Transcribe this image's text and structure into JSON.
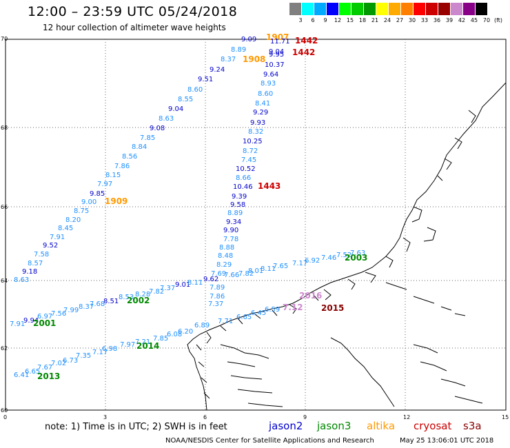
{
  "header": {
    "title": "12:00 – 23:59 UTC 05/24/2018",
    "subtitle": "12 hour collection of altimeter wave heights"
  },
  "legend": {
    "unit": "(ft)",
    "colors": [
      "#808080",
      "#00ffff",
      "#00aaff",
      "#0000ff",
      "#00ff00",
      "#00cc00",
      "#009900",
      "#ffff00",
      "#ffaa00",
      "#ff7f00",
      "#ff0000",
      "#cc0000",
      "#990000",
      "#cc88cc",
      "#880088",
      "#000000"
    ],
    "labels": [
      "3",
      "6",
      "9",
      "12",
      "15",
      "18",
      "21",
      "24",
      "27",
      "30",
      "33",
      "36",
      "39",
      "42",
      "45",
      "70"
    ]
  },
  "axes": {
    "y_ticks": [
      "70",
      "68",
      "66",
      "64",
      "62",
      "60"
    ],
    "x_ticks": [
      "0",
      "3",
      "6",
      "9",
      "12",
      "15"
    ]
  },
  "footer": {
    "note": "note: 1) Time is in UTC; 2) SWH is in feet",
    "satellites": [
      {
        "name": "jason2",
        "color": "#0000cc"
      },
      {
        "name": "jason3",
        "color": "#008800"
      },
      {
        "name": "altika",
        "color": "#ff9900"
      },
      {
        "name": "cryosat",
        "color": "#cc0000"
      },
      {
        "name": "s3a",
        "color": "#880000"
      }
    ],
    "credit": "NOAA/NESDIS Center for Satellite Applications and Research",
    "timestamp": "May 25 13:06:01 UTC 2018"
  },
  "map": {
    "markers": [
      {
        "t": "9.09",
        "c": "#0000cc"
      },
      {
        "t": "1907",
        "c": "#ff9900"
      },
      {
        "t": "11.71",
        "c": "#0000cc"
      },
      {
        "t": "1442",
        "c": "#cc0000"
      },
      {
        "t": "8.89",
        "c": "#1e90ff"
      },
      {
        "t": "9.04",
        "c": "#0000cc"
      },
      {
        "t": "9.95",
        "c": "#0000cc"
      },
      {
        "t": "1442",
        "c": "#cc0000"
      },
      {
        "t": "8.37",
        "c": "#1e90ff"
      },
      {
        "t": "1908",
        "c": "#ff9900"
      },
      {
        "t": "10.37",
        "c": "#0000cc"
      },
      {
        "t": "9.24",
        "c": "#0000cc"
      },
      {
        "t": "9.64",
        "c": "#0000cc"
      },
      {
        "t": "9.51",
        "c": "#0000cc"
      },
      {
        "t": "8.93",
        "c": "#1e90ff"
      },
      {
        "t": "8.60",
        "c": "#1e90ff"
      },
      {
        "t": "8.60",
        "c": "#1e90ff"
      },
      {
        "t": "8.55",
        "c": "#1e90ff"
      },
      {
        "t": "8.41",
        "c": "#1e90ff"
      },
      {
        "t": "9.04",
        "c": "#0000cc"
      },
      {
        "t": "9.29",
        "c": "#0000cc"
      },
      {
        "t": "8.63",
        "c": "#1e90ff"
      },
      {
        "t": "9.93",
        "c": "#0000cc"
      },
      {
        "t": "9.08",
        "c": "#0000cc"
      },
      {
        "t": "8.32",
        "c": "#1e90ff"
      },
      {
        "t": "7.85",
        "c": "#1e90ff"
      },
      {
        "t": "10.25",
        "c": "#0000cc"
      },
      {
        "t": "8.84",
        "c": "#1e90ff"
      },
      {
        "t": "8.72",
        "c": "#1e90ff"
      },
      {
        "t": "8.56",
        "c": "#1e90ff"
      },
      {
        "t": "7.45",
        "c": "#1e90ff"
      },
      {
        "t": "7.86",
        "c": "#1e90ff"
      },
      {
        "t": "10.52",
        "c": "#0000cc"
      },
      {
        "t": "8.15",
        "c": "#1e90ff"
      },
      {
        "t": "8.66",
        "c": "#1e90ff"
      },
      {
        "t": "7.97",
        "c": "#1e90ff"
      },
      {
        "t": "10.46",
        "c": "#0000cc"
      },
      {
        "t": "1443",
        "c": "#cc0000"
      },
      {
        "t": "9.85",
        "c": "#0000cc"
      },
      {
        "t": "9.39",
        "c": "#0000cc"
      },
      {
        "t": "9.00",
        "c": "#1e90ff"
      },
      {
        "t": "1909",
        "c": "#ff9900"
      },
      {
        "t": "9.58",
        "c": "#0000cc"
      },
      {
        "t": "8.75",
        "c": "#1e90ff"
      },
      {
        "t": "8.89",
        "c": "#1e90ff"
      },
      {
        "t": "8.20",
        "c": "#1e90ff"
      },
      {
        "t": "9.34",
        "c": "#0000cc"
      },
      {
        "t": "8.45",
        "c": "#1e90ff"
      },
      {
        "t": "9.90",
        "c": "#0000cc"
      },
      {
        "t": "7.91",
        "c": "#1e90ff"
      },
      {
        "t": "7.78",
        "c": "#1e90ff"
      },
      {
        "t": "9.52",
        "c": "#0000cc"
      },
      {
        "t": "8.88",
        "c": "#1e90ff"
      },
      {
        "t": "7.58",
        "c": "#1e90ff"
      },
      {
        "t": "8.48",
        "c": "#1e90ff"
      },
      {
        "t": "8.57",
        "c": "#1e90ff"
      },
      {
        "t": "8.29",
        "c": "#1e90ff"
      },
      {
        "t": "9.18",
        "c": "#0000cc"
      },
      {
        "t": "8.63",
        "c": "#1e90ff"
      },
      {
        "t": "7.69",
        "c": "#1e90ff"
      },
      {
        "t": "7.89",
        "c": "#1e90ff"
      },
      {
        "t": "7.86",
        "c": "#1e90ff"
      },
      {
        "t": "7.37",
        "c": "#1e90ff"
      },
      {
        "t": "7.66",
        "c": "#1e90ff"
      },
      {
        "t": "7.82",
        "c": "#1e90ff"
      },
      {
        "t": "8.01",
        "c": "#1e90ff"
      },
      {
        "t": "8.11",
        "c": "#1e90ff"
      },
      {
        "t": "7.65",
        "c": "#1e90ff"
      },
      {
        "t": "7.17",
        "c": "#1e90ff"
      },
      {
        "t": "6.92",
        "c": "#1e90ff"
      },
      {
        "t": "7.46",
        "c": "#1e90ff"
      },
      {
        "t": "7.52",
        "c": "#1e90ff"
      },
      {
        "t": "7.63",
        "c": "#1e90ff"
      },
      {
        "t": "2003",
        "c": "#008800"
      },
      {
        "t": "9.01",
        "c": "#0000cc"
      },
      {
        "t": "8.11",
        "c": "#1e90ff"
      },
      {
        "t": "9.62",
        "c": "#0000cc"
      },
      {
        "t": "7.37",
        "c": "#1e90ff"
      },
      {
        "t": "7.82",
        "c": "#1e90ff"
      },
      {
        "t": "8.28",
        "c": "#1e90ff"
      },
      {
        "t": "8.53",
        "c": "#1e90ff"
      },
      {
        "t": "2002",
        "c": "#008800"
      },
      {
        "t": "8.51",
        "c": "#0000cc"
      },
      {
        "t": "7.68",
        "c": "#1e90ff"
      },
      {
        "t": "8.37",
        "c": "#1e90ff"
      },
      {
        "t": "7.99",
        "c": "#1e90ff"
      },
      {
        "t": "7.56",
        "c": "#1e90ff"
      },
      {
        "t": "6.97",
        "c": "#1e90ff"
      },
      {
        "t": "9.94",
        "c": "#0000cc"
      },
      {
        "t": "7.91",
        "c": "#1e90ff"
      },
      {
        "t": "2001",
        "c": "#008800"
      },
      {
        "t": "6.59",
        "c": "#1e90ff"
      },
      {
        "t": "6.45",
        "c": "#1e90ff"
      },
      {
        "t": "6.65",
        "c": "#1e90ff"
      },
      {
        "t": "7.71",
        "c": "#1e90ff"
      },
      {
        "t": "6.89",
        "c": "#1e90ff"
      },
      {
        "t": "6.20",
        "c": "#1e90ff"
      },
      {
        "t": "6.08",
        "c": "#1e90ff"
      },
      {
        "t": "7.85",
        "c": "#1e90ff"
      },
      {
        "t": "7.21",
        "c": "#1e90ff"
      },
      {
        "t": "7.97",
        "c": "#1e90ff"
      },
      {
        "t": "2014",
        "c": "#008800"
      },
      {
        "t": "6.98",
        "c": "#1e90ff"
      },
      {
        "t": "7.17",
        "c": "#1e90ff"
      },
      {
        "t": "7.35",
        "c": "#1e90ff"
      },
      {
        "t": "6.73",
        "c": "#1e90ff"
      },
      {
        "t": "7.02",
        "c": "#1e90ff"
      },
      {
        "t": "7.67",
        "c": "#1e90ff"
      },
      {
        "t": "6.65",
        "c": "#1e90ff"
      },
      {
        "t": "6.41",
        "c": "#1e90ff"
      },
      {
        "t": "2013",
        "c": "#008800"
      },
      {
        "t": "2016",
        "c": "#cc88cc"
      },
      {
        "t": "2015",
        "c": "#880000"
      },
      {
        "t": "7.12",
        "c": "#cc88cc"
      }
    ]
  }
}
